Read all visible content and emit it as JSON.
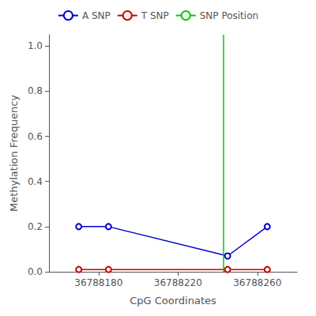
{
  "chart_data": {
    "type": "line",
    "xlabel": "CpG Coordinates",
    "ylabel": "Methylation Frequency",
    "series": [
      {
        "name": "A SNP",
        "color": "#0000CC",
        "marker": "o",
        "line_style": "solid",
        "x": [
          36788170,
          36788185,
          36788245,
          36788265
        ],
        "values": [
          0.2,
          0.2,
          0.07,
          0.2
        ]
      },
      {
        "name": "T SNP",
        "color": "#CC0000",
        "marker": "o",
        "line_style": "solid",
        "x": [
          36788170,
          36788185,
          36788245,
          36788265
        ],
        "values": [
          0.01,
          0.01,
          0.01,
          0.01
        ]
      },
      {
        "name": "SNP Position",
        "type": "vline",
        "color": "#00CC00",
        "line_style": "solid",
        "x": [
          36788243
        ]
      }
    ],
    "xlim": [
      36788155,
      36788280
    ],
    "xticks": [
      36788180,
      36788220,
      36788260
    ],
    "ylim": [
      0.0,
      1.05
    ],
    "yticks": [
      {
        "value": 0.0,
        "label": "0.0"
      },
      0.2,
      0.4,
      0.6,
      0.8,
      {
        "value": 1.0,
        "label": "1.0"
      }
    ],
    "grid": false,
    "legend": "top"
  }
}
